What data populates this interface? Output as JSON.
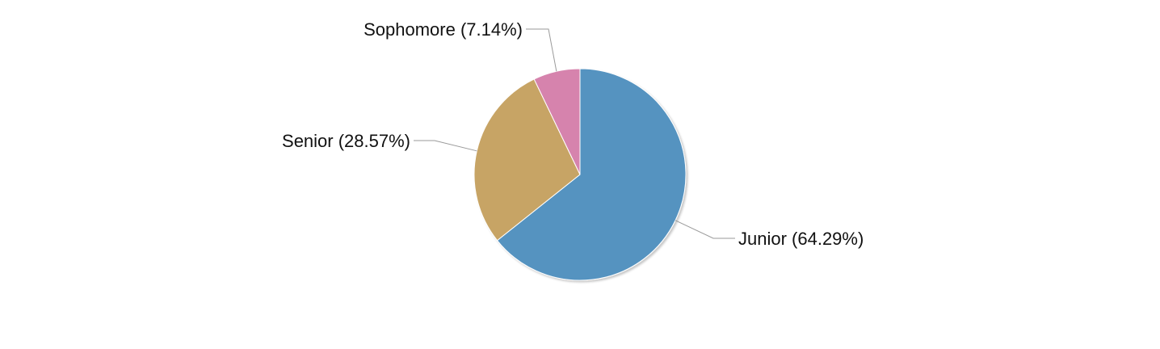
{
  "chart_data": {
    "type": "pie",
    "title": "",
    "slices": [
      {
        "label": "Junior",
        "value": 64.29,
        "label_text": "Junior (64.29%)",
        "color": "#5593c0"
      },
      {
        "label": "Senior",
        "value": 28.57,
        "label_text": "Senior (28.57%)",
        "color": "#c7a465"
      },
      {
        "label": "Sophomore",
        "value": 7.14,
        "label_text": "Sophomore (7.14%)",
        "color": "#d683ad"
      }
    ],
    "start_angle": "12 o'clock",
    "direction": "clockwise",
    "legend": "none",
    "labels": "outside with leader lines"
  }
}
